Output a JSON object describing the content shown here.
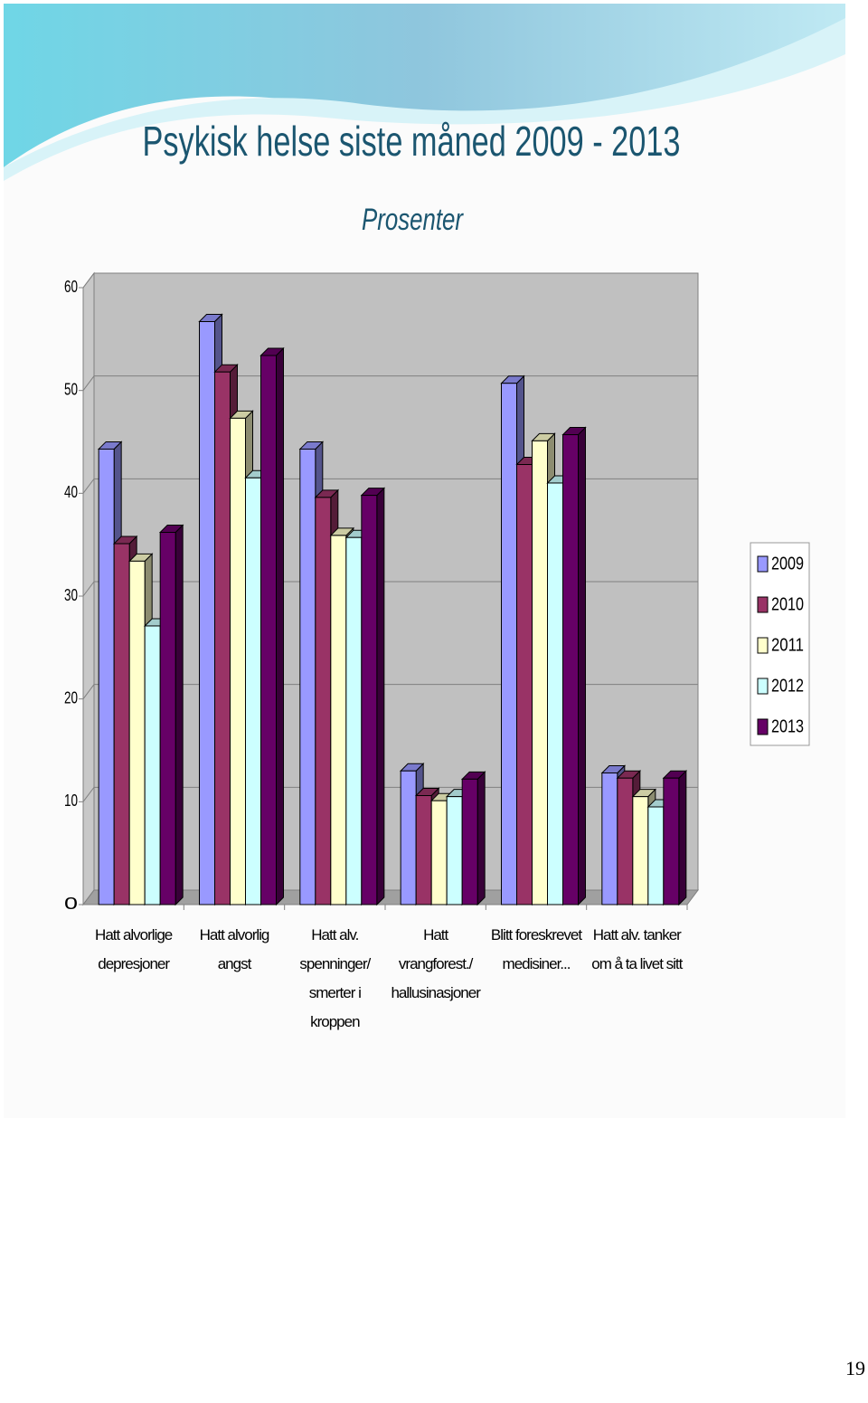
{
  "chart_data": {
    "type": "bar3d",
    "title": "Psykisk helse siste måned 2009 - 2013",
    "subtitle": "Prosenter",
    "categories": [
      "Hatt alvorlige depresjoner",
      "Hatt alvorlig angst",
      "Hatt alv. spenninger/ smerter i kroppen",
      "Hatt vrangforest./ hallusinasjoner",
      "Blitt foreskrevet medisiner...",
      "Hatt alv. tanker om å ta livet sitt"
    ],
    "series": [
      {
        "name": "2009",
        "color": "#9999ff",
        "values": [
          44.3,
          56.7,
          44.3,
          13.0,
          50.7,
          12.8
        ]
      },
      {
        "name": "2010",
        "color": "#993366",
        "values": [
          35.1,
          51.8,
          39.6,
          10.6,
          42.8,
          12.3
        ]
      },
      {
        "name": "2011",
        "color": "#ffffcc",
        "values": [
          33.4,
          47.3,
          35.9,
          10.1,
          45.1,
          10.5
        ]
      },
      {
        "name": "2012",
        "color": "#ccffff",
        "values": [
          27.1,
          41.5,
          35.7,
          10.5,
          41.0,
          9.5
        ]
      },
      {
        "name": "2013",
        "color": "#660066",
        "values": [
          36.2,
          53.4,
          39.8,
          12.2,
          45.7,
          12.3
        ]
      }
    ],
    "ylim": [
      0,
      60
    ],
    "yticks": [
      0,
      10,
      20,
      30,
      40,
      50,
      60
    ],
    "grid": true,
    "legend": "right"
  },
  "page_number": "19"
}
